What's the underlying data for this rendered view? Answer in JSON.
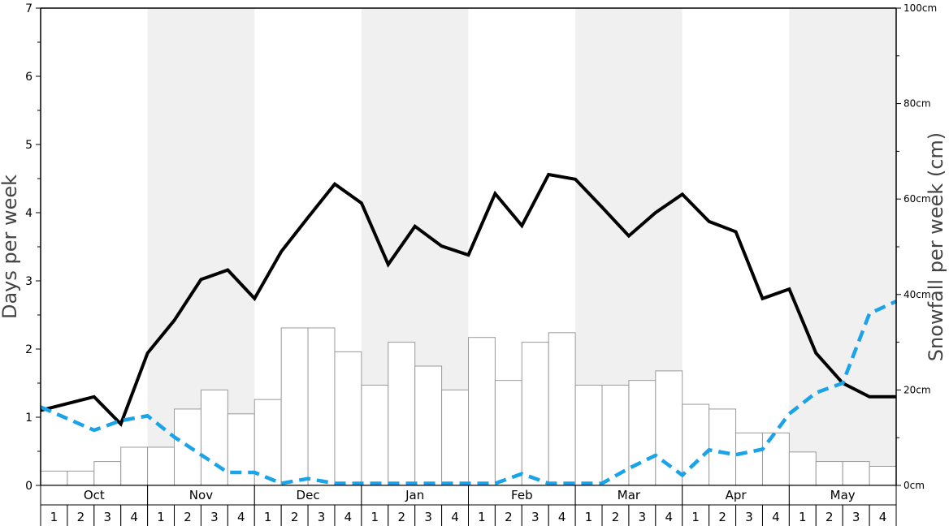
{
  "chart_data": {
    "type": "bar",
    "months": [
      "Oct",
      "Nov",
      "Dec",
      "Jan",
      "Feb",
      "Mar",
      "Apr",
      "May"
    ],
    "week_labels": [
      "1",
      "2",
      "3",
      "4"
    ],
    "shaded_months": [
      false,
      true,
      false,
      true,
      false,
      true,
      false,
      true
    ],
    "ylabel": "Days per week",
    "y2label": "Snowfall per week (cm)",
    "ylim": [
      0,
      7
    ],
    "y2lim": [
      0,
      100
    ],
    "y_ticks": [
      "0",
      "1",
      "2",
      "3",
      "4",
      "5",
      "6",
      "7"
    ],
    "y2_ticks": [
      "0cm",
      "20cm",
      "40cm",
      "60cm",
      "80cm",
      "100cm"
    ],
    "series": [
      {
        "kind": "bar",
        "axis": "right",
        "values": [
          3,
          3,
          5,
          8,
          8,
          16,
          20,
          15,
          18,
          33,
          33,
          28,
          21,
          30,
          25,
          20,
          31,
          22,
          30,
          32,
          21,
          21,
          22,
          24,
          17,
          16,
          11,
          11,
          7,
          5,
          5,
          4
        ]
      },
      {
        "kind": "line",
        "axis": "left",
        "color": "#000000",
        "values": [
          1.1,
          1.2,
          1.3,
          0.9,
          1.94,
          2.42,
          3.02,
          3.16,
          2.74,
          3.43,
          3.93,
          4.42,
          4.14,
          3.24,
          3.8,
          3.51,
          3.38,
          4.28,
          3.81,
          4.56,
          4.49,
          4.08,
          3.66,
          4.0,
          4.27,
          3.87,
          3.72,
          2.74,
          2.88,
          1.94,
          1.5,
          1.3,
          1.3
        ]
      },
      {
        "kind": "line",
        "axis": "left",
        "color": "#1aa3e8",
        "style": "dashed",
        "values": [
          1.15,
          0.98,
          0.81,
          0.95,
          1.02,
          0.71,
          0.45,
          0.19,
          0.19,
          0.03,
          0.1,
          0.03,
          0.03,
          0.03,
          0.03,
          0.03,
          0.03,
          0.03,
          0.17,
          0.03,
          0.03,
          0.03,
          0.25,
          0.44,
          0.15,
          0.52,
          0.45,
          0.53,
          1.05,
          1.36,
          1.5,
          2.52,
          2.7
        ]
      }
    ]
  }
}
